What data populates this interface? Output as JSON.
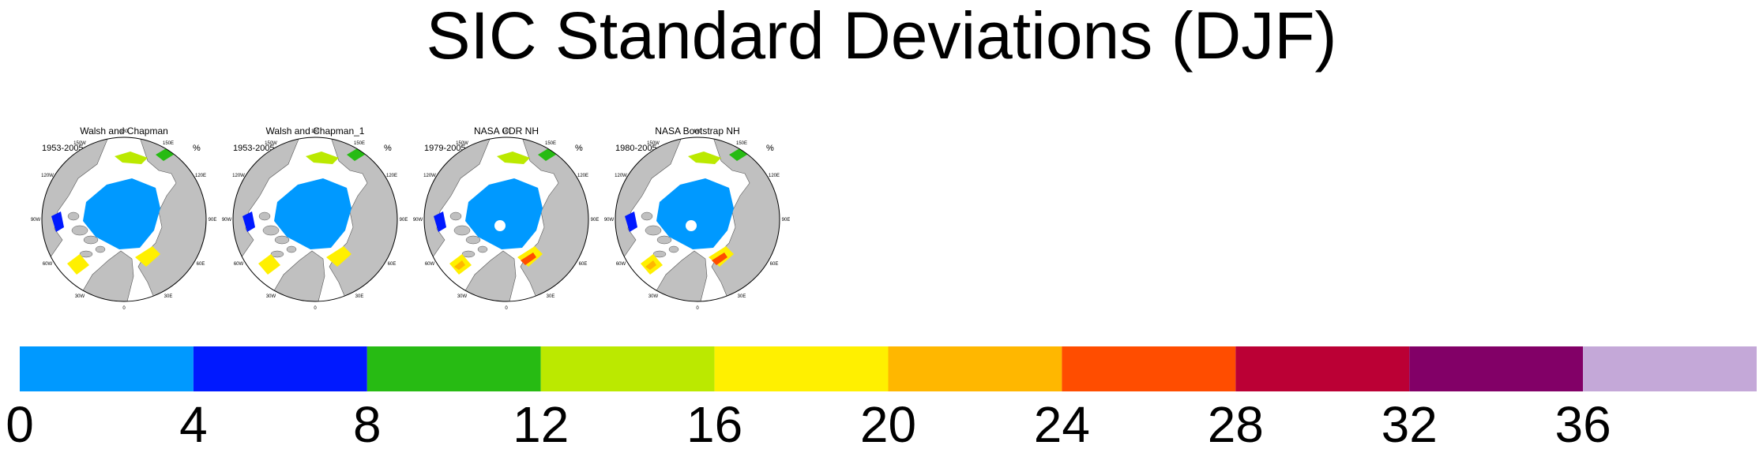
{
  "title": "SIC Standard Deviations (DJF)",
  "unit_label": "%",
  "panels": [
    {
      "title": "Walsh and Chapman",
      "period": "1953-2005",
      "pole_hole": false
    },
    {
      "title": "Walsh and Chapman_1",
      "period": "1953-2005",
      "pole_hole": false
    },
    {
      "title": "NASA CDR NH",
      "period": "1979-2005",
      "pole_hole": true
    },
    {
      "title": "NASA Bootstrap NH",
      "period": "1980-2005",
      "pole_hole": true
    }
  ],
  "longitude_labels": [
    "180",
    "150W",
    "150E",
    "120W",
    "120E",
    "90W",
    "90E",
    "60W",
    "60E",
    "30W",
    "30E",
    "0"
  ],
  "colors": {
    "land": "#c0c0c0",
    "ocean": "#ffffff",
    "map_outline": "#000000"
  },
  "colorbar": {
    "ticks": [
      "0",
      "4",
      "8",
      "12",
      "16",
      "20",
      "24",
      "28",
      "32",
      "36"
    ],
    "colors": [
      "#0099ff",
      "#0019ff",
      "#27bb13",
      "#bbe900",
      "#fff000",
      "#ffb700",
      "#ff4d00",
      "#bb0035",
      "#820067",
      "#c4a8d8"
    ]
  }
}
